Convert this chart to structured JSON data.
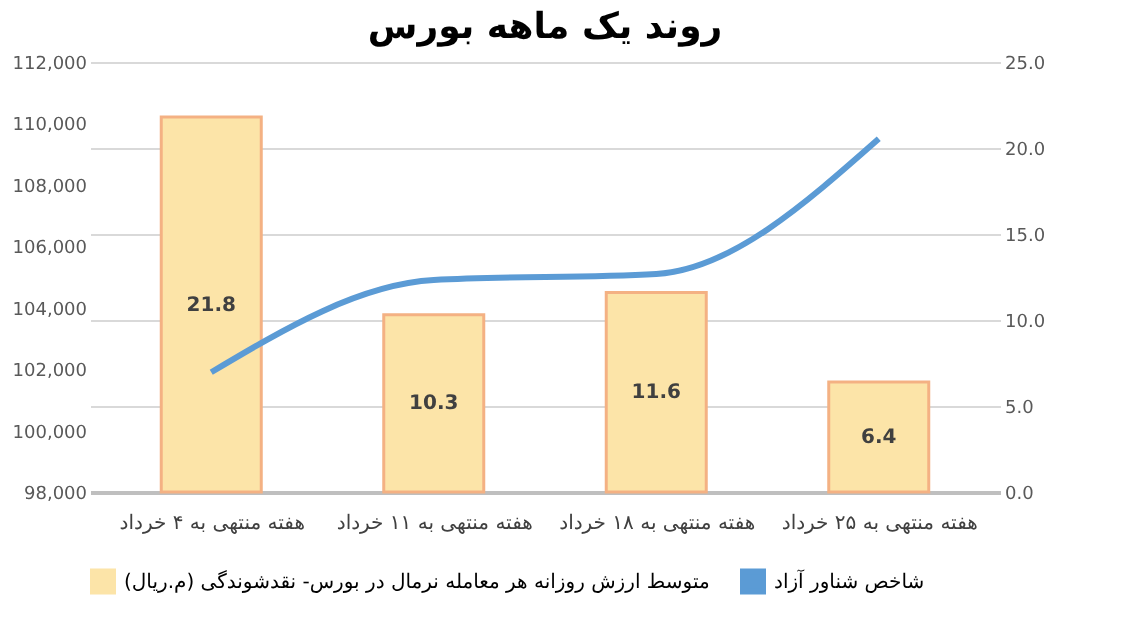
{
  "chart_data": {
    "type": "bar",
    "title": "روند یک ماهه بورس",
    "categories": [
      "هفته منتهی به ۴ خرداد",
      "هفته منتهی به ۱۱ خرداد",
      "هفته منتهی به ۱۸ خرداد",
      "هفته منتهی به ۲۵ خرداد"
    ],
    "series": [
      {
        "name": "متوسط ارزش روزانه هر معامله نرمال در بورس- نقدشوندگی (م.ریال)",
        "axis": "y2",
        "color": "#fce4a8",
        "values": [
          21.8,
          10.3,
          11.6,
          6.4
        ],
        "value_labels": [
          "21.8",
          "10.3",
          "11.6",
          "6.4"
        ]
      },
      {
        "name": "شاخص شناور آزاد",
        "type": "line",
        "color": "#5b9bd5",
        "values": [
          101900,
          104900,
          105100,
          109500
        ]
      }
    ],
    "ylim": [
      98000,
      112000
    ],
    "yticks": [
      {
        "value": 98000,
        "label": "98,000"
      },
      {
        "value": 100000,
        "label": "100,000"
      },
      {
        "value": 102000,
        "label": "102,000"
      },
      {
        "value": 104000,
        "label": "104,000"
      },
      {
        "value": 106000,
        "label": "106,000"
      },
      {
        "value": 108000,
        "label": "108,000"
      },
      {
        "value": 110000,
        "label": "110,000"
      },
      {
        "value": 112000,
        "label": "112,000"
      }
    ],
    "y2lim": [
      0,
      25
    ],
    "y2ticks": [
      {
        "value": 0,
        "label": "0.0"
      },
      {
        "value": 5,
        "label": "5.0"
      },
      {
        "value": 10,
        "label": "10.0"
      },
      {
        "value": 15,
        "label": "15.0"
      },
      {
        "value": 20,
        "label": "20.0"
      },
      {
        "value": 25,
        "label": "25.0"
      }
    ],
    "grid": "y",
    "legend": "bottom"
  }
}
